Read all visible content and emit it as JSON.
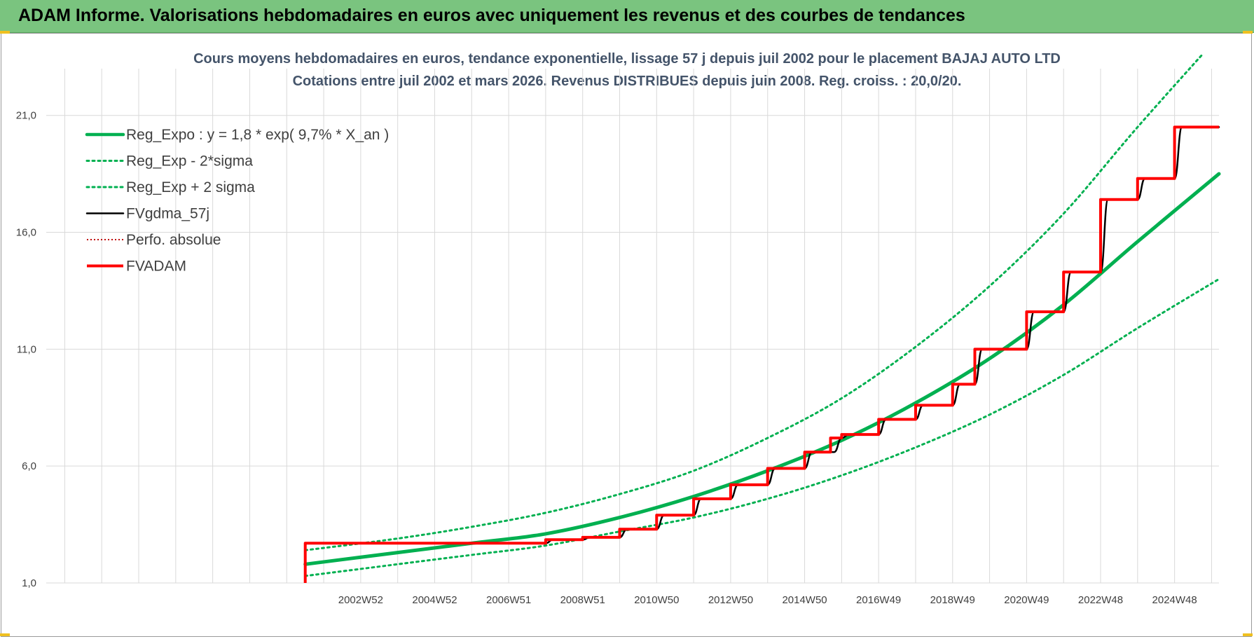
{
  "banner": {
    "title": "ADAM Informe. Valorisations hebdomadaires en euros avec uniquement les revenus et des courbes de tendances"
  },
  "colors": {
    "banner_bg": "#7ac47f",
    "trend": "#00b050",
    "smooth": "#000000",
    "adam": "#ff0000",
    "perfo": "#c00000",
    "grid": "#d9d9d9"
  },
  "chart_data": {
    "type": "line",
    "title": "Cours moyens hebdomadaires en euros, tendance exponentielle, lissage 57 j depuis juil 2002 pour le placement BAJAJ AUTO LTD",
    "subtitle": "Cotations entre juil 2002 et mars 2026. Revenus DISTRIBUES depuis juin 2008. Reg. croiss. : 20,0/20.",
    "xlabel": "",
    "ylabel": "",
    "x_range": [
      1994.5,
      2026.2
    ],
    "ylim": [
      1,
      23
    ],
    "y_ticks": [
      {
        "v": 1,
        "label": "1,0"
      },
      {
        "v": 6,
        "label": "6,0"
      },
      {
        "v": 11,
        "label": "11,0"
      },
      {
        "v": 16,
        "label": "16,0"
      },
      {
        "v": 21,
        "label": "21,0"
      }
    ],
    "x_ticks": [
      {
        "x": 2003.0,
        "label": "2002W52"
      },
      {
        "x": 2005.0,
        "label": "2004W52"
      },
      {
        "x": 2007.0,
        "label": "2006W51"
      },
      {
        "x": 2009.0,
        "label": "2008W51"
      },
      {
        "x": 2011.0,
        "label": "2010W50"
      },
      {
        "x": 2013.0,
        "label": "2012W50"
      },
      {
        "x": 2015.0,
        "label": "2014W50"
      },
      {
        "x": 2017.0,
        "label": "2016W49"
      },
      {
        "x": 2019.0,
        "label": "2018W49"
      },
      {
        "x": 2021.0,
        "label": "2020W49"
      },
      {
        "x": 2023.0,
        "label": "2022W48"
      },
      {
        "x": 2025.0,
        "label": "2024W48"
      }
    ],
    "grid": true,
    "legend_position": "top-left",
    "series": [
      {
        "name": "Reg_Expo : y = 1,8 * exp( 9,7% *  X_an )",
        "style": "solid-thick",
        "color": "#00b050",
        "points": [
          [
            2001.5,
            1.8
          ],
          [
            2004.0,
            2.3
          ],
          [
            2006.0,
            2.7
          ],
          [
            2008.0,
            3.1
          ],
          [
            2010.0,
            3.8
          ],
          [
            2012.0,
            4.7
          ],
          [
            2014.0,
            5.8
          ],
          [
            2016.0,
            7.1
          ],
          [
            2018.0,
            8.7
          ],
          [
            2020.0,
            10.6
          ],
          [
            2022.0,
            12.9
          ],
          [
            2024.0,
            15.6
          ],
          [
            2026.2,
            18.5
          ]
        ]
      },
      {
        "name": "Reg_Exp - 2*sigma",
        "style": "dotted",
        "color": "#00b050",
        "points": [
          [
            2001.5,
            1.3
          ],
          [
            2004.0,
            1.8
          ],
          [
            2006.0,
            2.2
          ],
          [
            2008.0,
            2.6
          ],
          [
            2010.0,
            3.2
          ],
          [
            2012.0,
            3.8
          ],
          [
            2014.0,
            4.6
          ],
          [
            2016.0,
            5.6
          ],
          [
            2018.0,
            6.8
          ],
          [
            2020.0,
            8.2
          ],
          [
            2022.0,
            9.9
          ],
          [
            2024.0,
            11.9
          ],
          [
            2026.2,
            14.0
          ]
        ]
      },
      {
        "name": "Reg_Exp + 2 sigma",
        "style": "dotted",
        "color": "#00b050",
        "points": [
          [
            2001.5,
            2.4
          ],
          [
            2004.0,
            2.9
          ],
          [
            2006.0,
            3.4
          ],
          [
            2008.0,
            4.0
          ],
          [
            2010.0,
            4.8
          ],
          [
            2012.0,
            5.8
          ],
          [
            2014.0,
            7.2
          ],
          [
            2016.0,
            8.9
          ],
          [
            2018.0,
            11.1
          ],
          [
            2020.0,
            13.7
          ],
          [
            2022.0,
            16.8
          ],
          [
            2024.0,
            20.5
          ],
          [
            2026.2,
            24.4
          ]
        ]
      },
      {
        "name": "FVgdma_57j",
        "style": "smooth-steps",
        "color": "#000000",
        "points": [
          [
            2001.5,
            2.7
          ],
          [
            2008.0,
            2.7
          ],
          [
            2008.2,
            2.85
          ],
          [
            2009.0,
            2.85
          ],
          [
            2009.2,
            2.95
          ],
          [
            2010.0,
            2.95
          ],
          [
            2010.2,
            3.3
          ],
          [
            2011.0,
            3.3
          ],
          [
            2011.2,
            3.9
          ],
          [
            2012.0,
            3.9
          ],
          [
            2012.2,
            4.6
          ],
          [
            2013.0,
            4.6
          ],
          [
            2013.2,
            5.2
          ],
          [
            2014.0,
            5.2
          ],
          [
            2014.2,
            5.9
          ],
          [
            2015.0,
            5.9
          ],
          [
            2015.2,
            6.6
          ],
          [
            2015.8,
            6.6
          ],
          [
            2016.0,
            7.2
          ],
          [
            2016.2,
            7.35
          ],
          [
            2017.0,
            7.35
          ],
          [
            2017.2,
            8.0
          ],
          [
            2018.0,
            8.0
          ],
          [
            2018.2,
            8.6
          ],
          [
            2019.0,
            8.6
          ],
          [
            2019.2,
            9.5
          ],
          [
            2019.6,
            9.5
          ],
          [
            2019.8,
            11.0
          ],
          [
            2021.0,
            11.0
          ],
          [
            2021.2,
            12.6
          ],
          [
            2022.0,
            12.6
          ],
          [
            2022.2,
            14.3
          ],
          [
            2023.0,
            14.3
          ],
          [
            2023.2,
            17.4
          ],
          [
            2024.0,
            17.4
          ],
          [
            2024.2,
            18.3
          ],
          [
            2025.0,
            18.3
          ],
          [
            2025.2,
            20.5
          ],
          [
            2026.2,
            20.5
          ]
        ]
      },
      {
        "name": "Perfo. absolue",
        "style": "dotted-thin",
        "color": "#c00000",
        "points": []
      },
      {
        "name": "FVADAM",
        "style": "steps-thick",
        "color": "#ff0000",
        "points": [
          [
            2001.5,
            1.0
          ],
          [
            2001.5,
            2.7
          ],
          [
            2008.0,
            2.7
          ],
          [
            2008.0,
            2.85
          ],
          [
            2009.0,
            2.85
          ],
          [
            2009.0,
            2.95
          ],
          [
            2010.0,
            2.95
          ],
          [
            2010.0,
            3.3
          ],
          [
            2011.0,
            3.3
          ],
          [
            2011.0,
            3.9
          ],
          [
            2012.0,
            3.9
          ],
          [
            2012.0,
            4.6
          ],
          [
            2013.0,
            4.6
          ],
          [
            2013.0,
            5.2
          ],
          [
            2014.0,
            5.2
          ],
          [
            2014.0,
            5.9
          ],
          [
            2015.0,
            5.9
          ],
          [
            2015.0,
            6.6
          ],
          [
            2015.7,
            6.6
          ],
          [
            2015.7,
            7.2
          ],
          [
            2016.0,
            7.2
          ],
          [
            2016.0,
            7.35
          ],
          [
            2017.0,
            7.35
          ],
          [
            2017.0,
            8.0
          ],
          [
            2018.0,
            8.0
          ],
          [
            2018.0,
            8.6
          ],
          [
            2019.0,
            8.6
          ],
          [
            2019.0,
            9.5
          ],
          [
            2019.6,
            9.5
          ],
          [
            2019.6,
            11.0
          ],
          [
            2021.0,
            11.0
          ],
          [
            2021.0,
            12.6
          ],
          [
            2022.0,
            12.6
          ],
          [
            2022.0,
            14.3
          ],
          [
            2023.0,
            14.3
          ],
          [
            2023.0,
            17.4
          ],
          [
            2024.0,
            17.4
          ],
          [
            2024.0,
            18.3
          ],
          [
            2025.0,
            18.3
          ],
          [
            2025.0,
            20.5
          ],
          [
            2026.2,
            20.5
          ]
        ]
      }
    ]
  }
}
